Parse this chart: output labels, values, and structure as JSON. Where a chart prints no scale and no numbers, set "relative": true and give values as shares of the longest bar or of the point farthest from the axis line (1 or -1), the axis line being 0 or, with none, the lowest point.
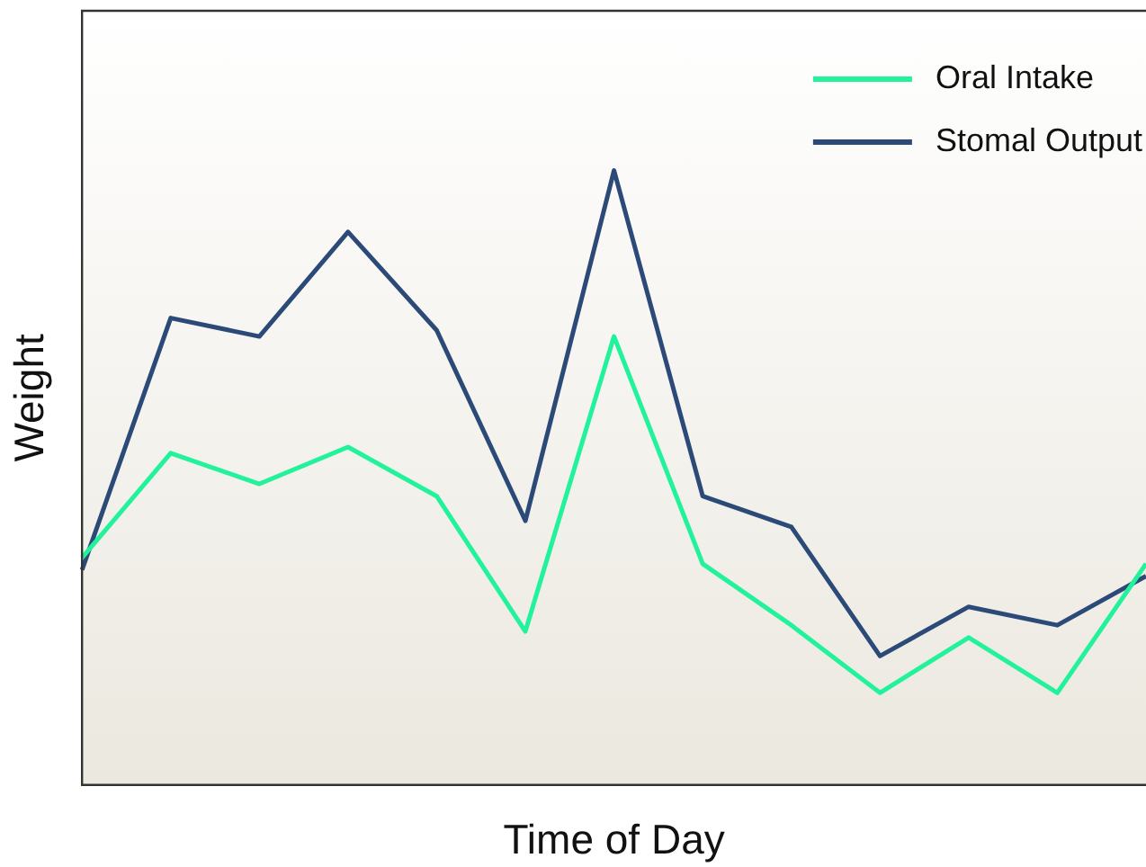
{
  "chart_data": {
    "type": "line",
    "relative": true,
    "xlabel": "Time of Day",
    "ylabel": "Weight",
    "legend": "top right",
    "grid": false,
    "marker": "none",
    "line_style": "solid",
    "categories": [
      null,
      null,
      null,
      null,
      null,
      null,
      null,
      null,
      null,
      null,
      null,
      null,
      null
    ],
    "series": [
      {
        "name": "Oral Intake",
        "color": "#22f29b",
        "values": [
          0.37,
          0.54,
          0.49,
          0.55,
          0.47,
          0.25,
          0.73,
          0.36,
          0.26,
          0.15,
          0.24,
          0.15,
          0.36
        ]
      },
      {
        "name": "Stomal Output",
        "color": "#2c4a78",
        "values": [
          0.35,
          0.76,
          0.73,
          0.9,
          0.74,
          0.43,
          1,
          0.47,
          0.42,
          0.21,
          0.29,
          0.26,
          0.34
        ]
      }
    ]
  }
}
